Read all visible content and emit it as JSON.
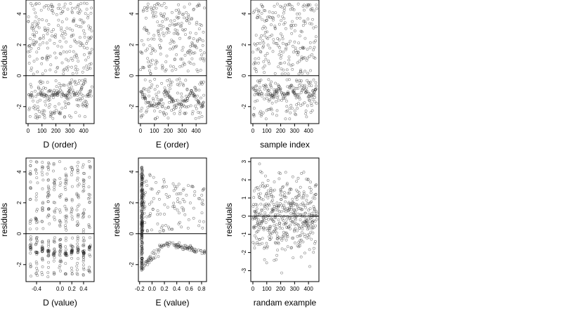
{
  "chart_data": [
    {
      "type": "scatter",
      "xlabel": "D (order)",
      "ylabel": "residuals",
      "xlim": [
        -15,
        475
      ],
      "ylim": [
        -3.1,
        4.9
      ],
      "xticks": [
        0,
        100,
        200,
        300,
        400
      ],
      "yticks": [
        -2,
        0,
        2,
        4
      ],
      "hline": 0,
      "generator": {
        "n": 460,
        "x": "index",
        "structure": "d_order",
        "seed": 11
      }
    },
    {
      "type": "scatter",
      "xlabel": "E (order)",
      "ylabel": "residuals",
      "xlim": [
        -15,
        475
      ],
      "ylim": [
        -3.1,
        4.9
      ],
      "xticks": [
        0,
        100,
        200,
        300,
        400
      ],
      "yticks": [
        -2,
        0,
        2,
        4
      ],
      "hline": 0,
      "generator": {
        "n": 460,
        "x": "index",
        "structure": "e_order",
        "seed": 22
      }
    },
    {
      "type": "scatter",
      "xlabel": "sample index",
      "ylabel": "residuals",
      "xlim": [
        -15,
        475
      ],
      "ylim": [
        -3.1,
        4.9
      ],
      "xticks": [
        0,
        100,
        200,
        300,
        400
      ],
      "yticks": [
        -2,
        0,
        2,
        4
      ],
      "hline": 0,
      "generator": {
        "n": 460,
        "x": "index",
        "structure": "sample",
        "seed": 33
      }
    },
    {
      "type": "scatter",
      "xlabel": "D (value)",
      "ylabel": "residuals",
      "xlim": [
        -0.58,
        0.58
      ],
      "ylim": [
        -3.1,
        4.9
      ],
      "xticks": [
        -0.4,
        0.0,
        0.2,
        0.4
      ],
      "xtick_labels": [
        "-0.4",
        "0.0",
        "0.2",
        "0.4"
      ],
      "yticks": [
        -2,
        0,
        2,
        4
      ],
      "hline": 0,
      "generator": {
        "n": 460,
        "x": "value",
        "structure": "d_value",
        "seed": 44
      }
    },
    {
      "type": "scatter",
      "xlabel": "E (value)",
      "ylabel": "residuals",
      "xlim": [
        -0.22,
        0.88
      ],
      "ylim": [
        -3.1,
        4.9
      ],
      "xticks": [
        -0.2,
        0.0,
        0.2,
        0.4,
        0.6,
        0.8
      ],
      "xtick_labels": [
        "-0.2",
        "0.0",
        "0.2",
        "0.4",
        "0.6",
        "0.8"
      ],
      "yticks": [
        -2,
        0,
        2,
        4
      ],
      "hline": 0,
      "generator": {
        "n": 460,
        "x": "value",
        "structure": "e_value",
        "seed": 55
      }
    },
    {
      "type": "scatter",
      "xlabel": "randam example",
      "ylabel": "residuals",
      "xlim": [
        -15,
        475
      ],
      "ylim": [
        -3.6,
        3.2
      ],
      "xticks": [
        0,
        100,
        200,
        300,
        400
      ],
      "yticks": [
        -3,
        -2,
        -1,
        0,
        1,
        2,
        3
      ],
      "hline": 0,
      "generator": {
        "n": 460,
        "x": "index",
        "structure": "random",
        "seed": 66
      }
    }
  ]
}
